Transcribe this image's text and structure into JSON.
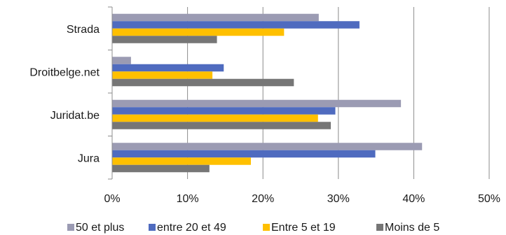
{
  "chart_data": {
    "type": "bar",
    "orientation": "horizontal",
    "categories": [
      "Strada",
      "Droitbelge.net",
      "Juridat.be",
      "Jura"
    ],
    "series": [
      {
        "name": "50 et plus",
        "values": [
          27.4,
          2.5,
          38.3,
          41.1
        ],
        "color": "#9b9bb3"
      },
      {
        "name": "entre 20 et 49",
        "values": [
          32.8,
          14.8,
          29.6,
          34.9
        ],
        "color": "#4f6bbf"
      },
      {
        "name": "Entre 5 et 19",
        "values": [
          22.8,
          13.3,
          27.3,
          18.4
        ],
        "color": "#ffc000"
      },
      {
        "name": "Moins de 5",
        "values": [
          13.9,
          24.1,
          29.0,
          12.9
        ],
        "color": "#767676"
      }
    ],
    "xticks": [
      "0%",
      "10%",
      "20%",
      "30%",
      "40%",
      "50%"
    ],
    "xlim": [
      0,
      50
    ],
    "grid": true,
    "legend_position": "bottom"
  }
}
